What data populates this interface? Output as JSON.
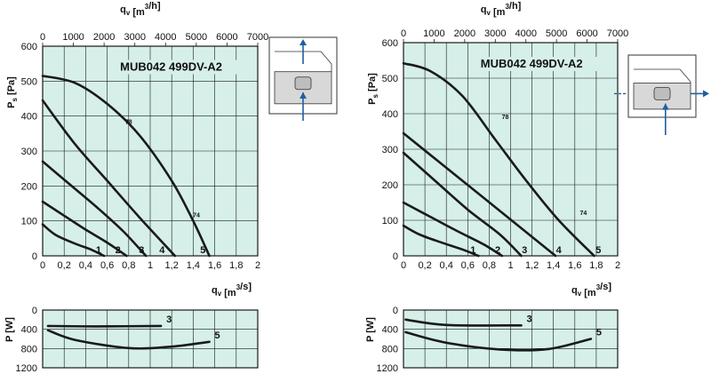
{
  "colors": {
    "plot_bg": "#d6efe9",
    "grid": "#1a1a1a",
    "curve": "#1a1a1a",
    "arrow": "#1f5fa0",
    "diagram": "#d8d8d8"
  },
  "icons": [
    "airflow-up-arrow-icon",
    "airflow-side-arrow-icon"
  ],
  "chart_data": [
    {
      "type": "line",
      "title": "MUB042 499DV-A2",
      "xlabel_top": "qv [m3/h]",
      "xlabel": "qv [m3/s]",
      "ylabel": "Ps [Pa]",
      "xlim": [
        0,
        2
      ],
      "ylim": [
        0,
        600
      ],
      "x2lim": [
        0,
        7000
      ],
      "xticks": [
        "0",
        "0,2",
        "0,4",
        "0,6",
        "0,8",
        "1",
        "1,2",
        "1,4",
        "1,6",
        "1,8",
        "2"
      ],
      "x2ticks": [
        "0",
        "1000",
        "2000",
        "3000",
        "4000",
        "5000",
        "6000",
        "7000"
      ],
      "yticks": [
        "0",
        "100",
        "200",
        "300",
        "400",
        "500",
        "600"
      ],
      "grid": true,
      "series": [
        {
          "name": "1",
          "x": [
            0,
            0.12,
            0.3,
            0.45,
            0.57
          ],
          "y": [
            90,
            60,
            35,
            18,
            0
          ]
        },
        {
          "name": "2",
          "x": [
            0,
            0.2,
            0.4,
            0.6,
            0.78
          ],
          "y": [
            155,
            115,
            75,
            38,
            0
          ]
        },
        {
          "name": "3",
          "x": [
            0,
            0.25,
            0.5,
            0.75,
            0.96
          ],
          "y": [
            270,
            205,
            140,
            70,
            0
          ]
        },
        {
          "name": "4",
          "x": [
            0,
            0.3,
            0.6,
            0.9,
            1.23
          ],
          "y": [
            445,
            320,
            215,
            110,
            0
          ]
        },
        {
          "name": "5",
          "x": [
            0,
            0.3,
            0.6,
            0.9,
            1.2,
            1.4,
            1.55
          ],
          "y": [
            515,
            495,
            435,
            345,
            215,
            100,
            0
          ]
        }
      ],
      "curve_labels": [
        {
          "text": "1",
          "x": 0.52,
          "y": 8
        },
        {
          "text": "2",
          "x": 0.7,
          "y": 8
        },
        {
          "text": "3",
          "x": 0.92,
          "y": 8
        },
        {
          "text": "4",
          "x": 1.11,
          "y": 8
        },
        {
          "text": "5",
          "x": 1.49,
          "y": 8
        }
      ],
      "efficiency_labels": [
        {
          "text": "78",
          "x": 0.8,
          "y": 378
        },
        {
          "text": "74",
          "x": 1.43,
          "y": 110
        }
      ],
      "power": {
        "ylabel": "P [W]",
        "ylim": [
          0,
          1200
        ],
        "yticks": [
          "0",
          "400",
          "800",
          "1200"
        ],
        "series": [
          {
            "name": "3",
            "x": [
              0.05,
              0.5,
              1.1
            ],
            "y": [
              330,
              340,
              330
            ]
          },
          {
            "name": "5",
            "x": [
              0.05,
              0.3,
              0.8,
              1.2,
              1.55
            ],
            "y": [
              420,
              620,
              790,
              760,
              660
            ]
          }
        ]
      }
    },
    {
      "type": "line",
      "title": "MUB042 499DV-A2",
      "xlabel_top": "qv [m3/h]",
      "xlabel": "qv [m3/s]",
      "ylabel": "Ps [Pa]",
      "xlim": [
        0,
        2
      ],
      "ylim": [
        0,
        600
      ],
      "x2lim": [
        0,
        7000
      ],
      "xticks": [
        "0",
        "0,2",
        "0,4",
        "0,6",
        "0,8",
        "1",
        "1,2",
        "1,4",
        "1,6",
        "1,8",
        "2"
      ],
      "x2ticks": [
        "0",
        "1000",
        "2000",
        "3000",
        "4000",
        "5000",
        "6000",
        "7000"
      ],
      "yticks": [
        "0",
        "100",
        "200",
        "300",
        "400",
        "500",
        "600"
      ],
      "grid": true,
      "series": [
        {
          "name": "1",
          "x": [
            0,
            0.15,
            0.35,
            0.55,
            0.7
          ],
          "y": [
            85,
            60,
            38,
            18,
            0
          ]
        },
        {
          "name": "2",
          "x": [
            0,
            0.25,
            0.5,
            0.75,
            0.92
          ],
          "y": [
            150,
            110,
            70,
            32,
            0
          ]
        },
        {
          "name": "3",
          "x": [
            0,
            0.3,
            0.6,
            0.9,
            1.1
          ],
          "y": [
            290,
            210,
            130,
            60,
            0
          ]
        },
        {
          "name": "4",
          "x": [
            0,
            0.35,
            0.7,
            1.05,
            1.42
          ],
          "y": [
            345,
            260,
            175,
            90,
            0
          ]
        },
        {
          "name": "5",
          "x": [
            0,
            0.25,
            0.55,
            0.85,
            1.15,
            1.45,
            1.78
          ],
          "y": [
            542,
            520,
            450,
            330,
            210,
            100,
            0
          ]
        }
      ],
      "curve_labels": [
        {
          "text": "1",
          "x": 0.65,
          "y": 8
        },
        {
          "text": "2",
          "x": 0.88,
          "y": 8
        },
        {
          "text": "3",
          "x": 1.13,
          "y": 8
        },
        {
          "text": "4",
          "x": 1.45,
          "y": 8
        },
        {
          "text": "5",
          "x": 1.82,
          "y": 8
        }
      ],
      "efficiency_labels": [
        {
          "text": "78",
          "x": 0.95,
          "y": 385
        },
        {
          "text": "74",
          "x": 1.68,
          "y": 115
        }
      ],
      "power": {
        "ylabel": "P [W]",
        "ylim": [
          0,
          1200
        ],
        "yticks": [
          "0",
          "400",
          "800",
          "1200"
        ],
        "series": [
          {
            "name": "3",
            "x": [
              0.02,
              0.4,
              1.1
            ],
            "y": [
              200,
              310,
              320
            ]
          },
          {
            "name": "5",
            "x": [
              0.02,
              0.4,
              0.9,
              1.35,
              1.75
            ],
            "y": [
              460,
              680,
              820,
              810,
              600
            ]
          }
        ]
      }
    }
  ]
}
